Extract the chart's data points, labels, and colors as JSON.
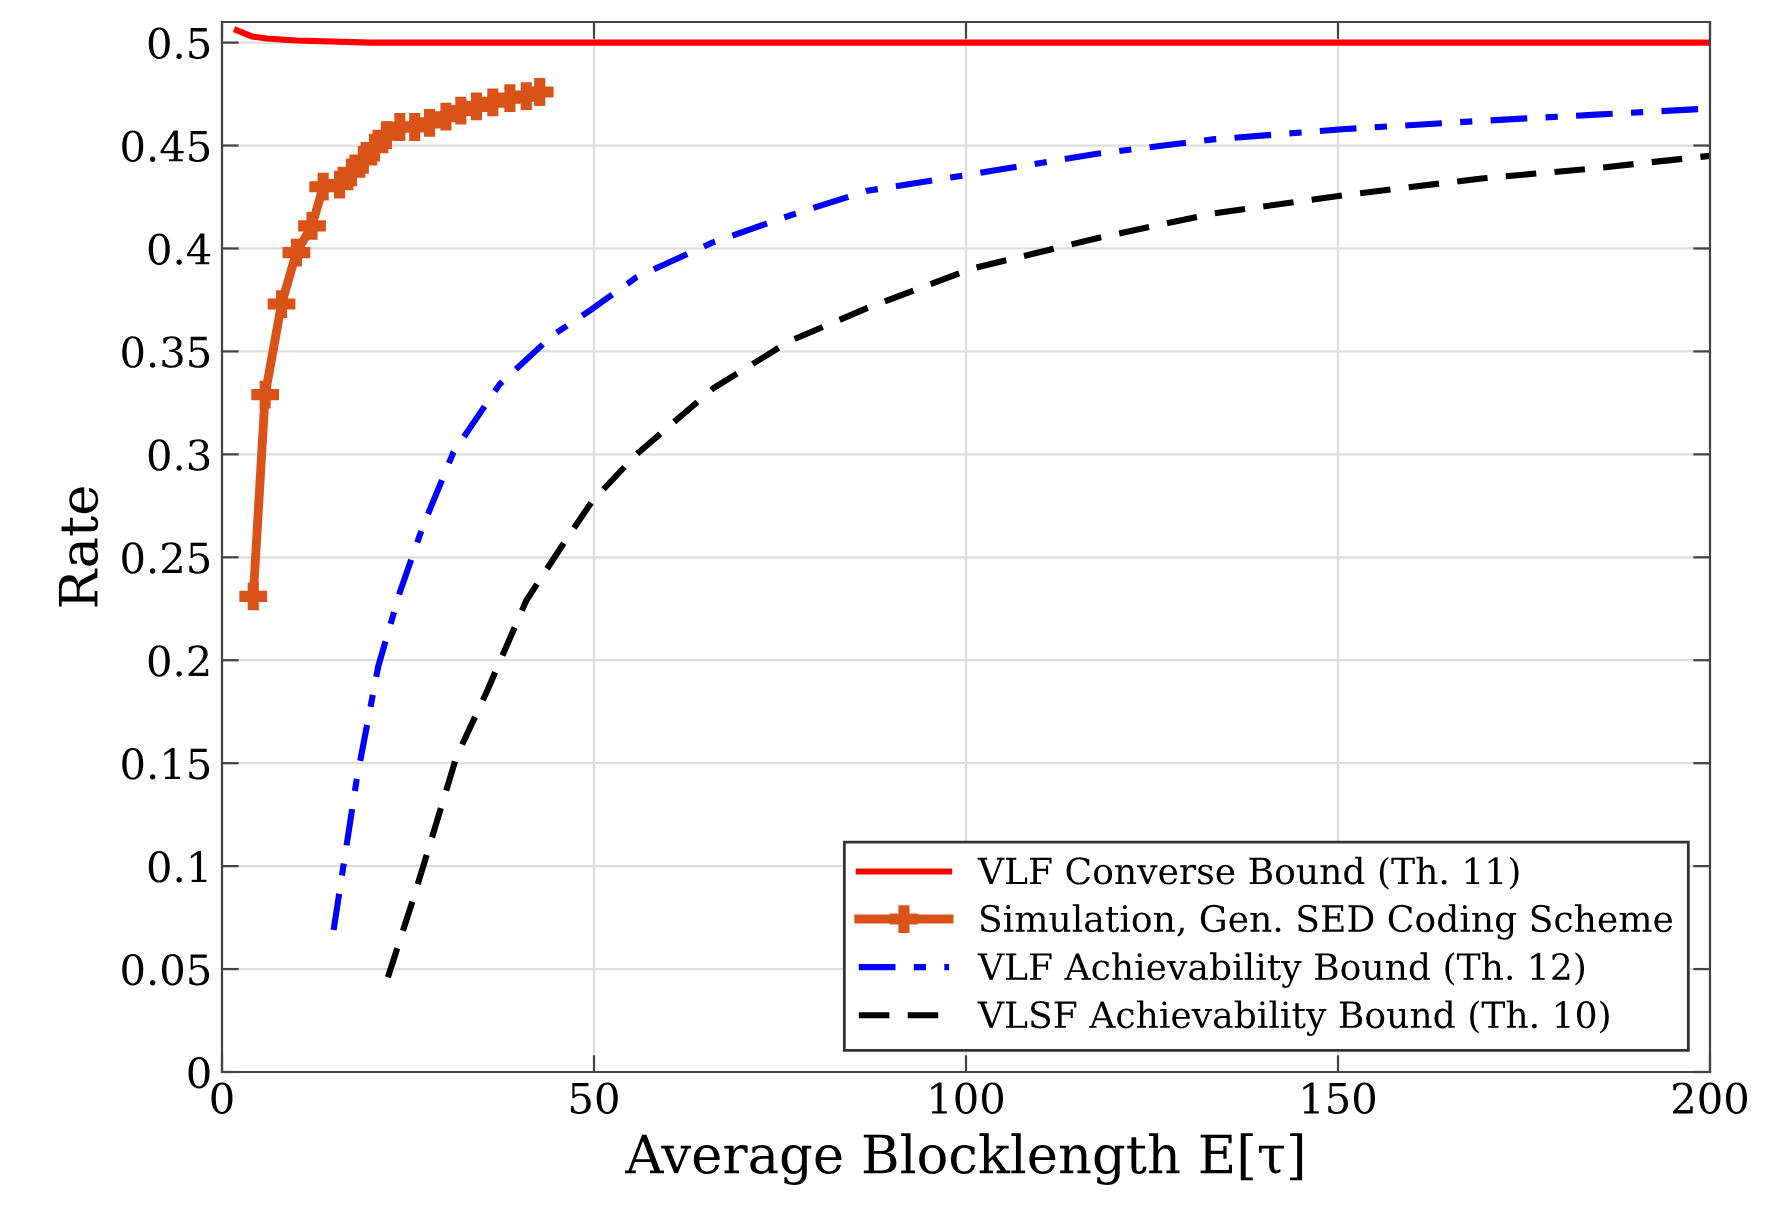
{
  "chart_data": {
    "type": "line",
    "xlabel": "Average Blocklength E[τ]",
    "ylabel": "Rate",
    "xlim": [
      0,
      200
    ],
    "xticks": [
      0,
      50,
      100,
      150,
      200
    ],
    "ylim": [
      0,
      0.51
    ],
    "yticks": [
      0,
      0.05,
      0.1,
      0.15,
      0.2,
      0.25,
      0.3,
      0.35,
      0.4,
      0.45,
      0.5
    ],
    "grid": true,
    "legend": "bottom right",
    "series": [
      {
        "name": "VLF Converse Bound (Th. 11)",
        "color": "#ff0000",
        "line_style": "solid",
        "marker": "none",
        "x": [
          2,
          4,
          6,
          10,
          20,
          100,
          200
        ],
        "values": [
          0.506,
          0.503,
          0.502,
          0.501,
          0.5,
          0.5,
          0.5
        ]
      },
      {
        "name": "Simulation, Gen. SED Coding Scheme",
        "color": "#d95319",
        "line_style": "solid",
        "marker": "cross",
        "x": [
          4.2,
          5.8,
          8.0,
          10.0,
          12.1,
          13.6,
          15.8,
          17.4,
          19.0,
          20.5,
          22.1,
          23.9,
          25.9,
          27.9,
          30.1,
          32.1,
          34.2,
          36.4,
          38.7,
          40.9,
          42.7
        ],
        "values": [
          0.231,
          0.329,
          0.373,
          0.398,
          0.411,
          0.43,
          0.431,
          0.437,
          0.443,
          0.449,
          0.455,
          0.459,
          0.459,
          0.461,
          0.464,
          0.467,
          0.469,
          0.471,
          0.473,
          0.474,
          0.476
        ]
      },
      {
        "name": "VLF Achievability Bound (Th. 12)",
        "color": "#0000ff",
        "line_style": "dashdot",
        "marker": "none",
        "x": [
          15.0,
          18.1,
          21.0,
          23.9,
          27.0,
          31.1,
          37.3,
          44.5,
          49.5,
          55.7,
          66,
          76.3,
          86.7,
          100.6,
          117.6,
          133.2,
          151,
          169.3,
          184.7,
          200
        ],
        "values": [
          0.069,
          0.142,
          0.197,
          0.233,
          0.265,
          0.301,
          0.334,
          0.358,
          0.37,
          0.386,
          0.403,
          0.416,
          0.428,
          0.436,
          0.446,
          0.453,
          0.458,
          0.462,
          0.465,
          0.468
        ]
      },
      {
        "name": "VLSF Achievability Bound (Th. 10)",
        "color": "#000000",
        "line_style": "dashed",
        "marker": "none",
        "x": [
          22.3,
          25.7,
          27.9,
          31.5,
          35.5,
          40.9,
          45.6,
          49.7,
          55.7,
          66,
          76.3,
          86.7,
          100.6,
          117.6,
          133.2,
          151,
          169.3,
          184.7,
          200
        ],
        "values": [
          0.046,
          0.084,
          0.11,
          0.153,
          0.184,
          0.229,
          0.255,
          0.277,
          0.3,
          0.332,
          0.355,
          0.371,
          0.39,
          0.405,
          0.417,
          0.426,
          0.434,
          0.439,
          0.445
        ]
      }
    ]
  }
}
